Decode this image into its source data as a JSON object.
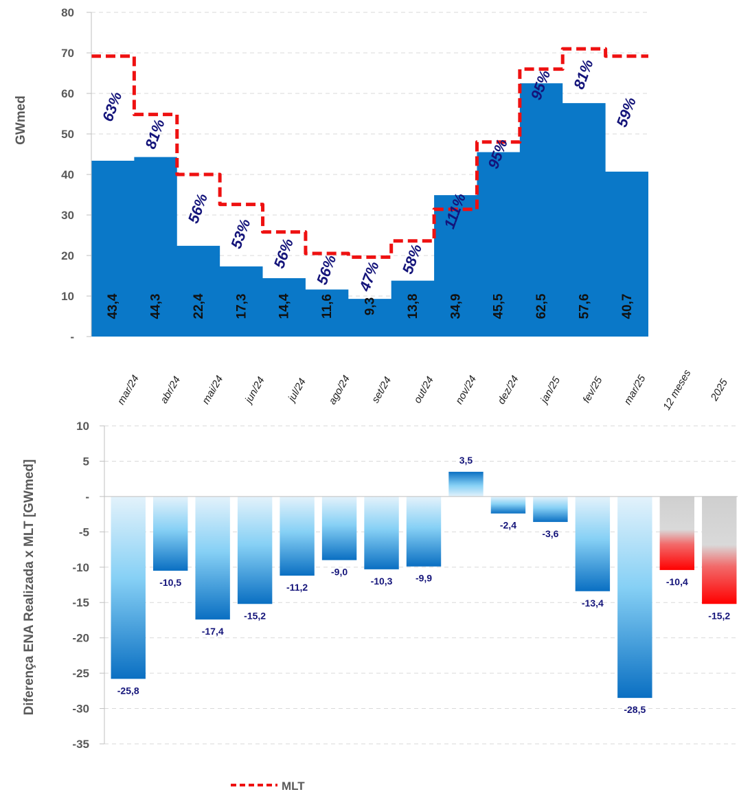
{
  "chart_data": [
    {
      "type": "area",
      "ylabel": "GWmed",
      "ylim": [
        0,
        80
      ],
      "yticks": [
        "-",
        "10",
        "20",
        "30",
        "40",
        "50",
        "60",
        "70",
        "80"
      ],
      "grid": true,
      "categories": [
        "mar/24",
        "abr/24",
        "mai/24",
        "jun/24",
        "jul/24",
        "ago/24",
        "set/24",
        "out/24",
        "nov/24",
        "dez/24",
        "jan/25",
        "fev/25",
        "mar/25"
      ],
      "series": [
        {
          "values": [
            43.4,
            44.3,
            22.4,
            17.3,
            14.4,
            11.6,
            9.3,
            13.8,
            34.9,
            45.5,
            62.5,
            57.6,
            40.7
          ],
          "labels": [
            "43,4",
            "44,3",
            "22,4",
            "17,3",
            "14,4",
            "11,6",
            "9,3",
            "13,8",
            "34,9",
            "45,5",
            "62,5",
            "57,6",
            "40,7"
          ],
          "color": "#0a78c8"
        },
        {
          "name": "MLT",
          "style": "dashed-step",
          "color": "#ee1111",
          "values": [
            69.2,
            54.8,
            40.0,
            32.6,
            25.8,
            20.5,
            19.6,
            23.6,
            31.4,
            48.0,
            66.0,
            71.0,
            69.2
          ]
        }
      ],
      "percent_labels": [
        "63%",
        "81%",
        "56%",
        "53%",
        "56%",
        "56%",
        "47%",
        "58%",
        "111%",
        "95%",
        "95%",
        "81%",
        "59%"
      ],
      "percent_color": "#14147a"
    },
    {
      "type": "bar",
      "ylabel": "Diferença ENA Realizada x MLT [GWmed]",
      "ylim": [
        -35,
        10
      ],
      "yticks": [
        "-35",
        "-30",
        "-25",
        "-20",
        "-15",
        "-10",
        "-5",
        "-",
        "5",
        "10"
      ],
      "grid": true,
      "categories": [
        "mar/24",
        "abr/24",
        "mai/24",
        "jun/24",
        "jul/24",
        "ago/24",
        "set/24",
        "out/24",
        "nov/24",
        "dez/24",
        "jan/25",
        "fev/25",
        "mar/25",
        "12 meses",
        "2025"
      ],
      "values": [
        -25.8,
        -10.5,
        -17.4,
        -15.2,
        -11.2,
        -9.0,
        -10.3,
        -9.9,
        3.5,
        -2.4,
        -3.6,
        -13.4,
        -28.5,
        -10.4,
        -15.2
      ],
      "labels": [
        "-25,8",
        "-10,5",
        "-17,4",
        "-15,2",
        "-11,2",
        "-9,0",
        "-10,3",
        "-9,9",
        "3,5",
        "-2,4",
        "-3,6",
        "-13,4",
        "-28,5",
        "-10,4",
        "-15,2"
      ],
      "bar_colors": [
        "blue",
        "blue",
        "blue",
        "blue",
        "blue",
        "blue",
        "blue",
        "blue",
        "blue",
        "blue",
        "blue",
        "blue",
        "blue",
        "red",
        "red"
      ],
      "label_color": "#14147a"
    }
  ],
  "legend": {
    "label": "MLT",
    "style": "dashed-red",
    "placement": "bottom-center"
  },
  "colors": {
    "fill_blue": "#0a78c8",
    "mlt_red": "#ee1111",
    "label_navy": "#14147a",
    "grid": "#d9d9d9"
  }
}
